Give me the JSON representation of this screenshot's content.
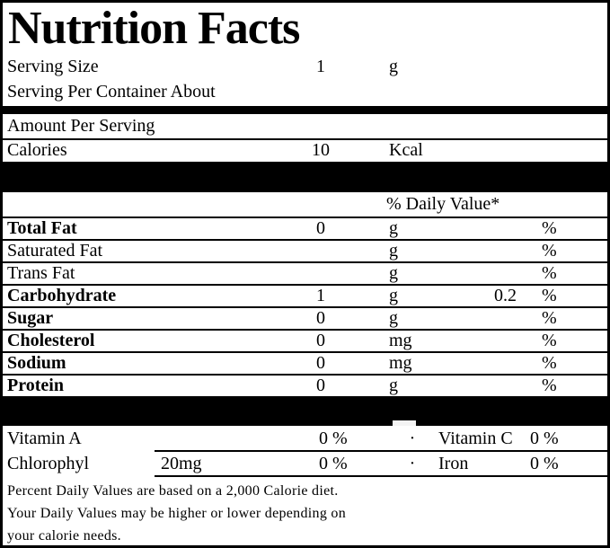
{
  "title": "Nutrition Facts",
  "serving": {
    "size_label": "Serving Size",
    "size_value": "1",
    "size_unit": "g",
    "per_container_label": "Serving Per Container About"
  },
  "amount_section": {
    "header": "Amount Per Serving",
    "calories_label": "Calories",
    "calories_value": "10",
    "calories_unit": "Kcal"
  },
  "daily_value_header": "% Daily Value*",
  "nutrients": [
    {
      "label": "Total Fat",
      "amount": "0",
      "unit": "g",
      "dv": "",
      "pct": "%"
    },
    {
      "label": "Saturated Fat",
      "amount": "",
      "unit": "g",
      "dv": "",
      "pct": "%"
    },
    {
      "label": "Trans Fat",
      "amount": "",
      "unit": "g",
      "dv": "",
      "pct": "%"
    },
    {
      "label": "Carbohydrate",
      "amount": "1",
      "unit": "g",
      "dv": "0.2",
      "pct": "%"
    },
    {
      "label": "Sugar",
      "amount": "0",
      "unit": "g",
      "dv": "",
      "pct": "%"
    },
    {
      "label": "Cholesterol",
      "amount": "0",
      "unit": "mg",
      "dv": "",
      "pct": "%"
    },
    {
      "label": "Sodium",
      "amount": "0",
      "unit": "mg",
      "dv": "",
      "pct": "%"
    },
    {
      "label": "Protein",
      "amount": "0",
      "unit": "g",
      "dv": "",
      "pct": "%"
    }
  ],
  "micronutrients": [
    {
      "label": "Vitamin A",
      "amount": "",
      "pct": "0 %",
      "sep": "·",
      "label2": "Vitamin C",
      "pct2": "0 %"
    },
    {
      "label": "Chlorophyl",
      "amount": "20mg",
      "pct": "0 %",
      "sep": "·",
      "label2": "Iron",
      "pct2": "0 %"
    }
  ],
  "footnote_lines": {
    "line1": "Percent Daily Values are based on a 2,000 Calorie diet.",
    "line2": "Your Daily Values may be higher or lower depending on",
    "line3": "your calorie needs."
  },
  "colors": {
    "ink": "#000000",
    "paper": "#ffffff"
  }
}
